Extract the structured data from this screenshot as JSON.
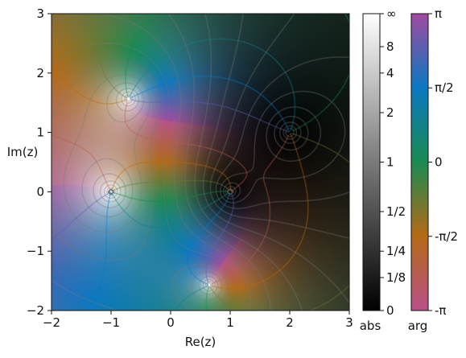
{
  "chart_data": {
    "type": "heatmap",
    "kind": "domain coloring of a complex function",
    "title": "",
    "xlabel": "Re(z)",
    "ylabel": "Im(z)",
    "xlim": [
      -2,
      3
    ],
    "ylim": [
      -2,
      3
    ],
    "xticks": [
      -2,
      -1,
      0,
      1,
      2,
      3
    ],
    "yticks": [
      -2,
      -1,
      0,
      1,
      2,
      3
    ],
    "xtick_labels": [
      "−2",
      "−1",
      "0",
      "1",
      "2",
      "3"
    ],
    "ytick_labels": [
      "−2",
      "−1",
      "0",
      "1",
      "2",
      "3"
    ],
    "zeros": [
      {
        "re": 2,
        "im": 1
      },
      {
        "re": 1,
        "im": 0
      }
    ],
    "poles": [
      {
        "re": -1,
        "im": 0
      },
      {
        "re": -0.7,
        "im": 1.57
      },
      {
        "re": 0.65,
        "im": -1.57
      }
    ],
    "grid": false,
    "colorbars": [
      {
        "label": "abs",
        "scale": "lightness (0 = black, ∞ = white)",
        "tick_values": [
          0,
          0.125,
          0.25,
          0.5,
          1,
          2,
          4,
          8,
          "inf"
        ],
        "tick_labels": [
          "0",
          "1/8",
          "1/4",
          "1/2",
          "1",
          "2",
          "4",
          "8",
          "∞"
        ]
      },
      {
        "label": "arg",
        "scale": "hue (−π to π)",
        "tick_values": [
          -3.14159,
          -1.5708,
          0,
          1.5708,
          3.14159
        ],
        "tick_labels": [
          "-π",
          "-π/2",
          "0",
          "π/2",
          "π"
        ]
      }
    ]
  }
}
